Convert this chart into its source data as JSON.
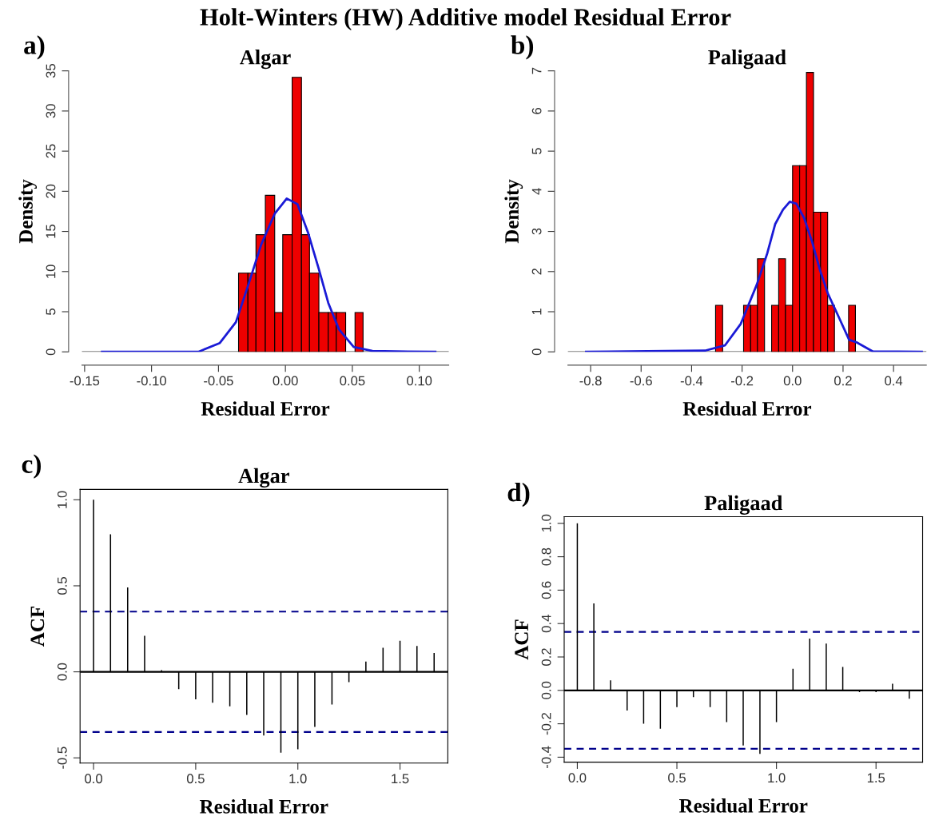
{
  "chart_data": [
    {
      "type": "histogram",
      "title": "Algar",
      "xlabel": "Residual Error",
      "ylabel": "Density",
      "color": "#ee0000",
      "bins": [
        -0.035,
        -0.028,
        -0.022,
        -0.015,
        -0.008,
        -0.002,
        0.005,
        0.012,
        0.018,
        0.025,
        0.032,
        0.038,
        0.045,
        0.052,
        0.058
      ],
      "values": [
        9.8,
        9.8,
        14.6,
        19.5,
        4.9,
        14.6,
        34.2,
        14.6,
        9.8,
        4.9,
        4.9,
        4.9,
        0,
        4.9
      ],
      "series": [
        {
          "type": "line",
          "color": "#1a1ad6",
          "x": [
            -0.137,
            -0.065,
            -0.049,
            -0.037,
            -0.028,
            -0.018,
            -0.008,
            0.001,
            0.009,
            0.017,
            0.025,
            0.032,
            0.04,
            0.051,
            0.065,
            0.112
          ],
          "values": [
            0,
            0,
            1.1,
            3.7,
            8.2,
            13.4,
            17.2,
            19.1,
            18.4,
            14.8,
            10.3,
            6.1,
            2.8,
            0.6,
            0.1,
            0
          ]
        }
      ],
      "xlim": [
        -0.152,
        0.122
      ],
      "ylim": [
        0,
        35
      ],
      "xticks": [
        {
          "value": -0.15,
          "label": "-0.15"
        },
        {
          "value": -0.1,
          "label": "-0.10"
        },
        {
          "value": -0.05,
          "label": "-0.05"
        },
        {
          "value": 0,
          "label": "0.00"
        },
        {
          "value": 0.05,
          "label": "0.05"
        },
        {
          "value": 0.1,
          "label": "0.10"
        }
      ],
      "yticks": [
        0,
        5,
        10,
        15,
        20,
        25,
        30,
        35
      ],
      "ref_lines": [
        {
          "axis": "y",
          "value": 0,
          "color": "#808080",
          "line_style": "solid"
        }
      ],
      "grid": false,
      "annotations": [
        "a)",
        "Holt-Winters (HW) Additive model Residual Error"
      ]
    },
    {
      "type": "histogram",
      "title": "Paligaad",
      "xlabel": "Residual Error",
      "ylabel": "Density",
      "color": "#ee0000",
      "bins": [
        -0.305,
        -0.277,
        -0.249,
        -0.222,
        -0.194,
        -0.166,
        -0.139,
        -0.111,
        -0.083,
        -0.055,
        -0.028,
        0,
        0.028,
        0.055,
        0.083,
        0.111,
        0.139,
        0.166,
        0.194,
        0.222,
        0.249
      ],
      "values": [
        1.16,
        0,
        0,
        0,
        1.16,
        1.16,
        2.32,
        0,
        1.16,
        2.32,
        1.16,
        4.64,
        4.64,
        6.96,
        3.48,
        3.48,
        1.16,
        0,
        0,
        1.16
      ],
      "series": [
        {
          "type": "line",
          "color": "#1a1ad6",
          "x": [
            -0.818,
            -0.347,
            -0.268,
            -0.205,
            -0.142,
            -0.1,
            -0.069,
            -0.038,
            -0.011,
            0.015,
            0.046,
            0.077,
            0.109,
            0.14,
            0.182,
            0.224,
            0.256,
            0.318,
            0.512
          ],
          "values": [
            0,
            0.03,
            0.16,
            0.7,
            1.67,
            2.46,
            3.18,
            3.54,
            3.74,
            3.69,
            3.33,
            2.75,
            2.03,
            1.45,
            0.88,
            0.3,
            0.23,
            0.01,
            0
          ]
        }
      ],
      "xlim": [
        -0.89,
        0.53
      ],
      "ylim": [
        0,
        7
      ],
      "xticks": [
        {
          "value": -0.8,
          "label": "-0.8"
        },
        {
          "value": -0.6,
          "label": "-0.6"
        },
        {
          "value": -0.4,
          "label": "-0.4"
        },
        {
          "value": -0.2,
          "label": "-0.2"
        },
        {
          "value": 0,
          "label": "0.0"
        },
        {
          "value": 0.2,
          "label": "0.2"
        },
        {
          "value": 0.4,
          "label": "0.4"
        }
      ],
      "yticks": [
        0,
        1,
        2,
        3,
        4,
        5,
        6,
        7
      ],
      "ref_lines": [
        {
          "axis": "y",
          "value": 0,
          "color": "#808080",
          "line_style": "solid"
        }
      ],
      "grid": false,
      "annotations": [
        "b)"
      ]
    },
    {
      "type": "bar",
      "title": "Algar",
      "xlabel": "Residual Error",
      "ylabel": "ACF",
      "color": "#000000",
      "x": [
        0,
        0.083,
        0.167,
        0.25,
        0.333,
        0.417,
        0.5,
        0.583,
        0.667,
        0.75,
        0.833,
        0.917,
        1.0,
        1.083,
        1.167,
        1.25,
        1.333,
        1.417,
        1.5,
        1.583,
        1.667
      ],
      "values": [
        1.0,
        0.8,
        0.49,
        0.21,
        0.01,
        -0.1,
        -0.16,
        -0.18,
        -0.2,
        -0.25,
        -0.37,
        -0.47,
        -0.45,
        -0.32,
        -0.19,
        -0.06,
        0.06,
        0.14,
        0.18,
        0.15,
        0.11
      ],
      "xlim": [
        -0.066,
        1.734
      ],
      "ylim": [
        -0.53,
        1.06
      ],
      "xticks": [
        {
          "value": 0,
          "label": "0.0"
        },
        {
          "value": 0.5,
          "label": "0.5"
        },
        {
          "value": 1,
          "label": "1.0"
        },
        {
          "value": 1.5,
          "label": "1.5"
        }
      ],
      "yticks": [
        {
          "value": -0.5,
          "label": "-0.5"
        },
        {
          "value": 0,
          "label": "0.0"
        },
        {
          "value": 0.5,
          "label": "0.5"
        },
        {
          "value": 1,
          "label": "1.0"
        }
      ],
      "ref_lines": [
        {
          "axis": "y",
          "value": 0,
          "color": "#000000",
          "line_style": "solid"
        },
        {
          "axis": "y",
          "value": 0.35,
          "color": "#00008b",
          "line_style": "dashed"
        },
        {
          "axis": "y",
          "value": -0.35,
          "color": "#00008b",
          "line_style": "dashed"
        }
      ],
      "grid": false,
      "annotations": [
        "c)"
      ]
    },
    {
      "type": "bar",
      "title": "Paligaad",
      "xlabel": "Residual Error",
      "ylabel": "ACF",
      "color": "#000000",
      "x": [
        0,
        0.083,
        0.167,
        0.25,
        0.333,
        0.417,
        0.5,
        0.583,
        0.667,
        0.75,
        0.833,
        0.917,
        1.0,
        1.083,
        1.167,
        1.25,
        1.333,
        1.417,
        1.5,
        1.583,
        1.667
      ],
      "values": [
        1.0,
        0.52,
        0.06,
        -0.12,
        -0.2,
        -0.23,
        -0.1,
        -0.04,
        -0.1,
        -0.19,
        -0.33,
        -0.38,
        -0.19,
        0.13,
        0.31,
        0.28,
        0.14,
        -0.01,
        -0.01,
        0.04,
        -0.05
      ],
      "xlim": [
        -0.066,
        1.734
      ],
      "ylim": [
        -0.43,
        1.04
      ],
      "xticks": [
        {
          "value": 0,
          "label": "0.0"
        },
        {
          "value": 0.5,
          "label": "0.5"
        },
        {
          "value": 1,
          "label": "1.0"
        },
        {
          "value": 1.5,
          "label": "1.5"
        }
      ],
      "yticks": [
        {
          "value": -0.4,
          "label": "-0.4"
        },
        {
          "value": -0.2,
          "label": "-0.2"
        },
        {
          "value": 0,
          "label": "0.0"
        },
        {
          "value": 0.2,
          "label": "0.2"
        },
        {
          "value": 0.4,
          "label": "0.4"
        },
        {
          "value": 0.6,
          "label": "0.6"
        },
        {
          "value": 0.8,
          "label": "0.8"
        },
        {
          "value": 1,
          "label": "1.0"
        }
      ],
      "ref_lines": [
        {
          "axis": "y",
          "value": 0,
          "color": "#000000",
          "line_style": "solid"
        },
        {
          "axis": "y",
          "value": 0.35,
          "color": "#00008b",
          "line_style": "dashed"
        },
        {
          "axis": "y",
          "value": -0.35,
          "color": "#00008b",
          "line_style": "dashed"
        }
      ],
      "grid": false,
      "annotations": [
        "d)"
      ]
    }
  ]
}
